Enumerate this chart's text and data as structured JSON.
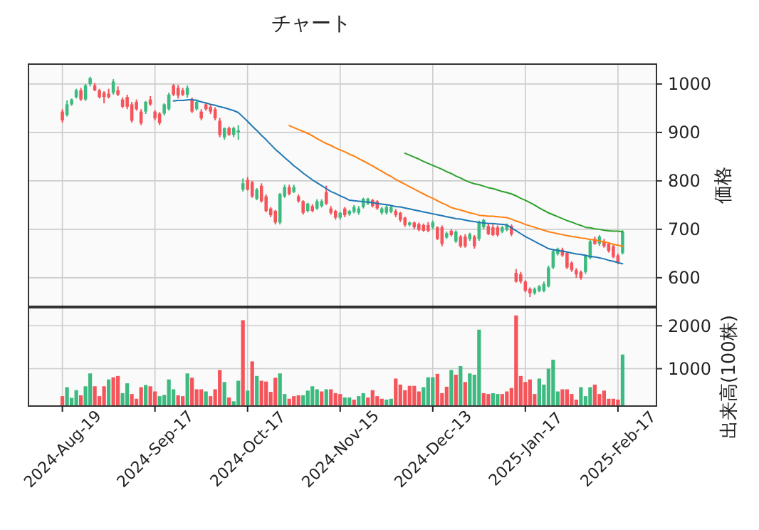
{
  "chart_data": [
    {
      "type": "candlestick",
      "title": "チャート",
      "ylabel": "価格",
      "ylim": [
        541,
        1041
      ],
      "yticks": [
        600,
        700,
        800,
        900,
        1000
      ],
      "tick_labels": "y",
      "grid": true,
      "categories": [
        null,
        null,
        null,
        null,
        null,
        null,
        null,
        null,
        null,
        null,
        null,
        null,
        null,
        null,
        null,
        null,
        null,
        null,
        null,
        null,
        null,
        null,
        null,
        null,
        null,
        null,
        null,
        null,
        null,
        null,
        null,
        null,
        null,
        null,
        null,
        null,
        null,
        null,
        null,
        null,
        null,
        null,
        null,
        null,
        null,
        null,
        null,
        null,
        null,
        null,
        null,
        null,
        null,
        null,
        null,
        null,
        null,
        null,
        null,
        null,
        null,
        null,
        null,
        null,
        null,
        null,
        null,
        null,
        null,
        null,
        null,
        null,
        null,
        null,
        null,
        null,
        null,
        null,
        null,
        null,
        null,
        null,
        null,
        null,
        null,
        null,
        null,
        null,
        null,
        null,
        null,
        null,
        null,
        null,
        null,
        null,
        null,
        null,
        null,
        null,
        null,
        null,
        null,
        null,
        null,
        null,
        null,
        null,
        null,
        null,
        null,
        null,
        null,
        null,
        null,
        null,
        null,
        null,
        null,
        null,
        null,
        null
      ],
      "ohlc": [
        [
          943,
          948,
          920,
          925
        ],
        [
          936,
          966,
          933,
          958
        ],
        [
          958,
          970,
          955,
          968
        ],
        [
          973,
          990,
          970,
          987
        ],
        [
          987,
          992,
          965,
          968
        ],
        [
          968,
          1000,
          965,
          997
        ],
        [
          1000,
          1015,
          995,
          1012
        ],
        [
          997,
          1002,
          985,
          987
        ],
        [
          987,
          990,
          970,
          973
        ],
        [
          982,
          985,
          960,
          973
        ],
        [
          980,
          990,
          970,
          973
        ],
        [
          982,
          1010,
          978,
          1005
        ],
        [
          987,
          995,
          975,
          978
        ],
        [
          968,
          972,
          950,
          953
        ],
        [
          973,
          978,
          948,
          953
        ],
        [
          958,
          963,
          920,
          924
        ],
        [
          963,
          968,
          945,
          948
        ],
        [
          943,
          948,
          915,
          919
        ],
        [
          943,
          965,
          938,
          963
        ],
        [
          968,
          975,
          955,
          958
        ],
        [
          943,
          946,
          925,
          929
        ],
        [
          939,
          942,
          915,
          919
        ],
        [
          939,
          960,
          935,
          958
        ],
        [
          948,
          982,
          945,
          978
        ],
        [
          997,
          1000,
          975,
          978
        ],
        [
          992,
          998,
          970,
          976
        ],
        [
          987,
          992,
          975,
          978
        ],
        [
          978,
          997,
          972,
          992
        ],
        [
          968,
          972,
          940,
          943
        ],
        [
          948,
          968,
          945,
          963
        ],
        [
          943,
          948,
          925,
          929
        ],
        [
          958,
          962,
          945,
          948
        ],
        [
          953,
          958,
          938,
          943
        ],
        [
          948,
          952,
          925,
          929
        ],
        [
          924,
          930,
          890,
          895
        ],
        [
          890,
          910,
          885,
          909
        ],
        [
          909,
          912,
          893,
          895
        ],
        [
          895,
          912,
          890,
          909
        ],
        [
          900,
          915,
          885,
          904
        ],
        [
          782,
          805,
          778,
          795
        ],
        [
          802,
          808,
          780,
          782
        ],
        [
          797,
          800,
          765,
          768
        ],
        [
          763,
          785,
          760,
          782
        ],
        [
          790,
          795,
          755,
          758
        ],
        [
          768,
          772,
          735,
          738
        ],
        [
          743,
          746,
          725,
          729
        ],
        [
          738,
          740,
          710,
          714
        ],
        [
          714,
          775,
          710,
          773
        ],
        [
          768,
          792,
          765,
          787
        ],
        [
          787,
          792,
          770,
          773
        ],
        [
          777,
          792,
          775,
          787
        ],
        [
          768,
          772,
          755,
          758
        ],
        [
          758,
          760,
          730,
          734
        ],
        [
          738,
          755,
          735,
          753
        ],
        [
          748,
          752,
          735,
          738
        ],
        [
          743,
          762,
          740,
          758
        ],
        [
          748,
          762,
          745,
          758
        ],
        [
          777,
          790,
          750,
          753
        ],
        [
          743,
          748,
          730,
          734
        ],
        [
          738,
          740,
          720,
          724
        ],
        [
          724,
          736,
          720,
          734
        ],
        [
          743,
          746,
          725,
          729
        ],
        [
          731,
          740,
          728,
          738
        ],
        [
          736,
          750,
          733,
          746
        ],
        [
          734,
          748,
          730,
          743
        ],
        [
          746,
          765,
          743,
          763
        ],
        [
          753,
          765,
          750,
          763
        ],
        [
          760,
          763,
          745,
          748
        ],
        [
          758,
          760,
          740,
          743
        ],
        [
          734,
          746,
          730,
          743
        ],
        [
          734,
          750,
          730,
          746
        ],
        [
          736,
          750,
          733,
          746
        ],
        [
          738,
          742,
          725,
          729
        ],
        [
          734,
          736,
          715,
          719
        ],
        [
          724,
          726,
          705,
          709
        ],
        [
          709,
          716,
          706,
          714
        ],
        [
          714,
          716,
          700,
          704
        ],
        [
          711,
          714,
          696,
          699
        ],
        [
          709,
          712,
          695,
          697
        ],
        [
          709,
          715,
          694,
          697
        ],
        [
          704,
          718,
          700,
          714
        ],
        [
          704,
          706,
          678,
          680
        ],
        [
          704,
          708,
          665,
          670
        ],
        [
          683,
          695,
          680,
          692
        ],
        [
          697,
          700,
          685,
          688
        ],
        [
          675,
          698,
          672,
          695
        ],
        [
          685,
          688,
          662,
          665
        ],
        [
          685,
          690,
          662,
          665
        ],
        [
          680,
          693,
          676,
          690
        ],
        [
          685,
          688,
          660,
          665
        ],
        [
          680,
          718,
          676,
          714
        ],
        [
          704,
          722,
          700,
          719
        ],
        [
          707,
          712,
          688,
          690
        ],
        [
          704,
          710,
          686,
          688
        ],
        [
          704,
          708,
          685,
          688
        ],
        [
          695,
          707,
          692,
          704
        ],
        [
          699,
          712,
          696,
          709
        ],
        [
          707,
          710,
          686,
          690
        ],
        [
          610,
          618,
          590,
          592
        ],
        [
          607,
          612,
          588,
          592
        ],
        [
          592,
          595,
          570,
          573
        ],
        [
          577,
          580,
          560,
          568
        ],
        [
          568,
          580,
          565,
          577
        ],
        [
          573,
          585,
          570,
          582
        ],
        [
          573,
          592,
          570,
          587
        ],
        [
          582,
          625,
          580,
          621
        ],
        [
          621,
          658,
          618,
          655
        ],
        [
          649,
          662,
          646,
          660
        ],
        [
          658,
          662,
          643,
          646
        ],
        [
          651,
          654,
          618,
          621
        ],
        [
          631,
          634,
          612,
          616
        ],
        [
          616,
          620,
          600,
          607
        ],
        [
          612,
          615,
          596,
          600
        ],
        [
          612,
          648,
          608,
          646
        ],
        [
          641,
          680,
          638,
          675
        ],
        [
          680,
          685,
          668,
          670
        ],
        [
          670,
          688,
          666,
          685
        ],
        [
          675,
          680,
          662,
          665
        ],
        [
          670,
          673,
          652,
          655
        ],
        [
          665,
          668,
          640,
          643
        ],
        [
          646,
          650,
          628,
          631
        ],
        [
          651,
          698,
          648,
          695
        ]
      ],
      "colors": [
        "#f4545a",
        "#3cba7f",
        "#3cba7f",
        "#3cba7f",
        "#f4545a",
        "#3cba7f",
        "#3cba7f",
        "#f4545a",
        "#f4545a",
        "#f4545a",
        "#f4545a",
        "#3cba7f",
        "#f4545a",
        "#f4545a",
        "#f4545a",
        "#f4545a",
        "#f4545a",
        "#f4545a",
        "#3cba7f",
        "#f4545a",
        "#f4545a",
        "#f4545a",
        "#3cba7f",
        "#3cba7f",
        "#f4545a",
        "#f4545a",
        "#f4545a",
        "#3cba7f",
        "#f4545a",
        "#3cba7f",
        "#f4545a",
        "#f4545a",
        "#f4545a",
        "#f4545a",
        "#f4545a",
        "#3cba7f",
        "#f4545a",
        "#3cba7f",
        "#3cba7f",
        "#3cba7f",
        "#f4545a",
        "#f4545a",
        "#3cba7f",
        "#f4545a",
        "#f4545a",
        "#f4545a",
        "#f4545a",
        "#3cba7f",
        "#3cba7f",
        "#f4545a",
        "#3cba7f",
        "#f4545a",
        "#f4545a",
        "#3cba7f",
        "#f4545a",
        "#3cba7f",
        "#3cba7f",
        "#f4545a",
        "#f4545a",
        "#f4545a",
        "#3cba7f",
        "#f4545a",
        "#3cba7f",
        "#3cba7f",
        "#3cba7f",
        "#3cba7f",
        "#3cba7f",
        "#f4545a",
        "#f4545a",
        "#3cba7f",
        "#3cba7f",
        "#3cba7f",
        "#f4545a",
        "#f4545a",
        "#f4545a",
        "#3cba7f",
        "#f4545a",
        "#f4545a",
        "#f4545a",
        "#f4545a",
        "#3cba7f",
        "#f4545a",
        "#f4545a",
        "#3cba7f",
        "#f4545a",
        "#3cba7f",
        "#f4545a",
        "#f4545a",
        "#3cba7f",
        "#f4545a",
        "#3cba7f",
        "#3cba7f",
        "#f4545a",
        "#f4545a",
        "#f4545a",
        "#3cba7f",
        "#3cba7f",
        "#f4545a",
        "#f4545a",
        "#f4545a",
        "#f4545a",
        "#f4545a",
        "#3cba7f",
        "#3cba7f",
        "#3cba7f",
        "#3cba7f",
        "#3cba7f",
        "#3cba7f",
        "#f4545a",
        "#f4545a",
        "#f4545a",
        "#f4545a",
        "#f4545a",
        "#3cba7f",
        "#3cba7f",
        "#f4545a",
        "#3cba7f",
        "#f4545a",
        "#f4545a",
        "#f4545a",
        "#f4545a",
        "#3cba7f"
      ],
      "series": [
        {
          "type": "line",
          "color": "#1f77b4",
          "values": [
            null,
            null,
            null,
            null,
            null,
            null,
            null,
            null,
            null,
            null,
            null,
            null,
            null,
            null,
            null,
            null,
            null,
            null,
            null,
            null,
            null,
            null,
            null,
            null,
            965,
            966,
            966,
            967,
            968,
            966,
            963,
            961,
            958,
            956,
            953,
            951,
            948,
            945,
            941,
            932,
            923,
            913,
            904,
            894,
            885,
            875,
            865,
            857,
            848,
            840,
            831,
            824,
            816,
            809,
            802,
            796,
            790,
            784,
            778,
            774,
            769,
            765,
            760,
            759,
            758,
            757,
            756,
            755,
            753,
            752,
            751,
            749,
            747,
            746,
            744,
            742,
            740,
            738,
            736,
            734,
            732,
            730,
            728,
            726,
            724,
            722,
            721,
            719,
            717,
            716,
            714,
            713,
            712,
            712,
            711,
            710,
            709,
            703,
            697,
            691,
            685,
            680,
            675,
            670,
            665,
            660,
            658,
            656,
            655,
            653,
            651,
            649,
            648,
            646,
            644,
            643,
            641,
            639,
            636,
            634,
            631,
            629
          ]
        },
        {
          "type": "line",
          "color": "#ff7f0e",
          "values": [
            null,
            null,
            null,
            null,
            null,
            null,
            null,
            null,
            null,
            null,
            null,
            null,
            null,
            null,
            null,
            null,
            null,
            null,
            null,
            null,
            null,
            null,
            null,
            null,
            null,
            null,
            null,
            null,
            null,
            null,
            null,
            null,
            null,
            null,
            null,
            null,
            null,
            null,
            null,
            null,
            null,
            null,
            null,
            null,
            null,
            null,
            null,
            null,
            null,
            914,
            910,
            906,
            902,
            898,
            893,
            887,
            882,
            877,
            873,
            868,
            864,
            860,
            855,
            851,
            846,
            841,
            836,
            831,
            825,
            820,
            814,
            809,
            803,
            798,
            793,
            788,
            783,
            778,
            773,
            768,
            764,
            759,
            754,
            750,
            745,
            742,
            740,
            737,
            734,
            732,
            729,
            728,
            727,
            727,
            726,
            725,
            724,
            721,
            717,
            714,
            710,
            707,
            704,
            701,
            698,
            695,
            693,
            691,
            689,
            687,
            685,
            684,
            682,
            681,
            679,
            678,
            676,
            674,
            672,
            669,
            667,
            665
          ]
        },
        {
          "type": "line",
          "color": "#2ca02c",
          "values": [
            null,
            null,
            null,
            null,
            null,
            null,
            null,
            null,
            null,
            null,
            null,
            null,
            null,
            null,
            null,
            null,
            null,
            null,
            null,
            null,
            null,
            null,
            null,
            null,
            null,
            null,
            null,
            null,
            null,
            null,
            null,
            null,
            null,
            null,
            null,
            null,
            null,
            null,
            null,
            null,
            null,
            null,
            null,
            null,
            null,
            null,
            null,
            null,
            null,
            null,
            null,
            null,
            null,
            null,
            null,
            null,
            null,
            null,
            null,
            null,
            null,
            null,
            null,
            null,
            null,
            null,
            null,
            null,
            null,
            null,
            null,
            null,
            null,
            null,
            857,
            853,
            849,
            845,
            840,
            836,
            832,
            828,
            824,
            819,
            815,
            810,
            806,
            801,
            797,
            794,
            792,
            789,
            786,
            784,
            781,
            778,
            776,
            773,
            769,
            764,
            760,
            755,
            750,
            744,
            739,
            734,
            730,
            726,
            722,
            718,
            715,
            711,
            708,
            704,
            703,
            701,
            700,
            698,
            697,
            696,
            696,
            695
          ]
        }
      ]
    },
    {
      "type": "bar",
      "ylabel": "出来高(100株)",
      "ylim": [
        130,
        2420
      ],
      "yticks": [
        1000,
        2000
      ],
      "grid": true,
      "categories": [
        "2024-Aug-19",
        null,
        null,
        null,
        null,
        null,
        null,
        null,
        null,
        null,
        null,
        null,
        null,
        null,
        null,
        null,
        null,
        null,
        null,
        null,
        "2024-Sep-17",
        null,
        null,
        null,
        null,
        null,
        null,
        null,
        null,
        null,
        null,
        null,
        null,
        null,
        null,
        null,
        null,
        null,
        null,
        null,
        "2024-Oct-17",
        null,
        null,
        null,
        null,
        null,
        null,
        null,
        null,
        null,
        null,
        null,
        null,
        null,
        null,
        null,
        null,
        null,
        null,
        null,
        "2024-Nov-15",
        null,
        null,
        null,
        null,
        null,
        null,
        null,
        null,
        null,
        null,
        null,
        null,
        null,
        null,
        null,
        null,
        null,
        null,
        null,
        "2024-Dec-13",
        null,
        null,
        null,
        null,
        null,
        null,
        null,
        null,
        null,
        null,
        null,
        null,
        null,
        null,
        null,
        null,
        null,
        null,
        null,
        "2025-Jan-17",
        null,
        null,
        null,
        null,
        null,
        null,
        null,
        null,
        null,
        null,
        null,
        null,
        null,
        null,
        null,
        null,
        null,
        null,
        null,
        "2025-Feb-17",
        null
      ],
      "values": [
        360,
        570,
        320,
        500,
        380,
        590,
        890,
        590,
        360,
        590,
        750,
        800,
        830,
        430,
        660,
        410,
        300,
        570,
        620,
        590,
        470,
        360,
        390,
        750,
        520,
        380,
        360,
        890,
        790,
        520,
        520,
        470,
        360,
        520,
        970,
        690,
        330,
        240,
        720,
        2130,
        490,
        1170,
        830,
        720,
        700,
        460,
        790,
        890,
        410,
        300,
        360,
        380,
        380,
        490,
        590,
        520,
        470,
        520,
        520,
        430,
        410,
        330,
        330,
        280,
        360,
        430,
        330,
        500,
        360,
        300,
        280,
        300,
        770,
        630,
        500,
        600,
        600,
        470,
        570,
        800,
        800,
        880,
        430,
        580,
        970,
        860,
        1060,
        690,
        890,
        860,
        1910,
        430,
        410,
        430,
        410,
        410,
        470,
        550,
        2240,
        830,
        690,
        750,
        410,
        770,
        630,
        1000,
        1210,
        470,
        520,
        520,
        410,
        280,
        570,
        360,
        570,
        630,
        410,
        490,
        300,
        300,
        280,
        1330
      ],
      "colors": [
        "#f4545a",
        "#3cba7f",
        "#3cba7f",
        "#3cba7f",
        "#f4545a",
        "#3cba7f",
        "#3cba7f",
        "#f4545a",
        "#f4545a",
        "#f4545a",
        "#3cba7f",
        "#f4545a",
        "#f4545a",
        "#3cba7f",
        "#3cba7f",
        "#f4545a",
        "#f4545a",
        "#f4545a",
        "#3cba7f",
        "#f4545a",
        "#f4545a",
        "#3cba7f",
        "#3cba7f",
        "#3cba7f",
        "#3cba7f",
        "#f4545a",
        "#f4545a",
        "#3cba7f",
        "#f4545a",
        "#f4545a",
        "#f4545a",
        "#3cba7f",
        "#f4545a",
        "#f4545a",
        "#f4545a",
        "#3cba7f",
        "#f4545a",
        "#3cba7f",
        "#3cba7f",
        "#f4545a",
        "#3cba7f",
        "#f4545a",
        "#3cba7f",
        "#f4545a",
        "#f4545a",
        "#f4545a",
        "#f4545a",
        "#3cba7f",
        "#3cba7f",
        "#f4545a",
        "#f4545a",
        "#f4545a",
        "#3cba7f",
        "#3cba7f",
        "#3cba7f",
        "#3cba7f",
        "#f4545a",
        "#3cba7f",
        "#f4545a",
        "#f4545a",
        "#f4545a",
        "#3cba7f",
        "#3cba7f",
        "#f4545a",
        "#3cba7f",
        "#3cba7f",
        "#f4545a",
        "#f4545a",
        "#f4545a",
        "#f4545a",
        "#3cba7f",
        "#3cba7f",
        "#f4545a",
        "#f4545a",
        "#f4545a",
        "#f4545a",
        "#f4545a",
        "#f4545a",
        "#3cba7f",
        "#3cba7f",
        "#3cba7f",
        "#f4545a",
        "#f4545a",
        "#f4545a",
        "#3cba7f",
        "#f4545a",
        "#3cba7f",
        "#f4545a",
        "#3cba7f",
        "#3cba7f",
        "#3cba7f",
        "#f4545a",
        "#f4545a",
        "#3cba7f",
        "#3cba7f",
        "#f4545a",
        "#f4545a",
        "#f4545a",
        "#f4545a",
        "#f4545a",
        "#f4545a",
        "#f4545a",
        "#f4545a",
        "#3cba7f",
        "#3cba7f",
        "#3cba7f",
        "#3cba7f",
        "#3cba7f",
        "#f4545a",
        "#f4545a",
        "#f4545a",
        "#f4545a",
        "#3cba7f",
        "#3cba7f",
        "#3cba7f",
        "#f4545a",
        "#f4545a",
        "#f4545a",
        "#f4545a",
        "#f4545a",
        "#f4545a",
        "#3cba7f"
      ]
    }
  ]
}
